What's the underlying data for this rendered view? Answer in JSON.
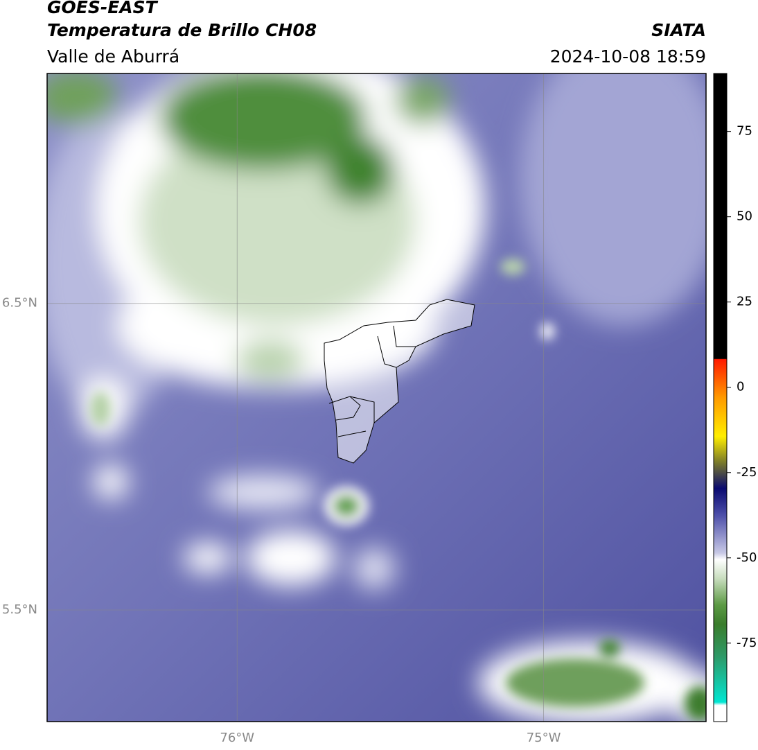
{
  "chart_data": {
    "type": "contour-map",
    "title": "GOES-EAST",
    "subtitle": "Temperatura de Brillo CH08",
    "region": "Valle de Aburrá",
    "source": "SIATA",
    "timestamp": "2024-10-08 18:59",
    "xlim": [
      -76.62,
      -74.47
    ],
    "ylim": [
      5.136,
      7.25
    ],
    "xticks": [
      {
        "value": -76,
        "label": "76°W"
      },
      {
        "value": -75,
        "label": "75°W"
      }
    ],
    "yticks": [
      {
        "value": 6.5,
        "label": "6.5°N"
      },
      {
        "value": 5.5,
        "label": "5.5°N"
      }
    ],
    "grid": true,
    "colorbar": {
      "lim": [
        -98,
        92
      ],
      "ticks": [
        75,
        50,
        25,
        0,
        -25,
        -50,
        -75
      ]
    }
  }
}
